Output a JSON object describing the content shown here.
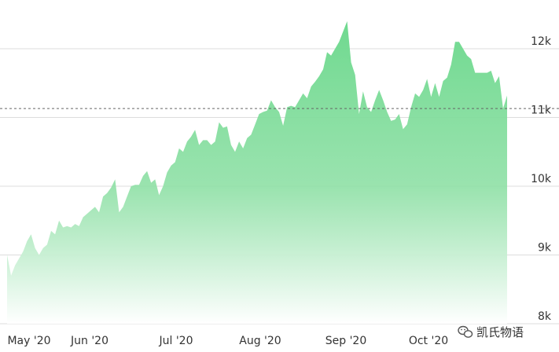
{
  "chart_data": {
    "type": "area",
    "title": "",
    "xlabel": "",
    "ylabel": "",
    "x_ticks": [
      "May '20",
      "Jun '20",
      "Jul '20",
      "Aug '20",
      "Sep '20",
      "Oct '20"
    ],
    "y_ticks": [
      "8k",
      "9k",
      "10k",
      "11k",
      "12k"
    ],
    "ylim": [
      8000,
      12450
    ],
    "grid": "horizontal",
    "reference_line": {
      "value": 11130,
      "style": "dashed"
    },
    "colors": {
      "area_top": "#6fd98f",
      "area_bottom": "#ffffff",
      "grid": "#dddddd",
      "reference": "#666666"
    },
    "series": [
      {
        "values": [
          9000,
          8700,
          8850,
          8950,
          9050,
          9200,
          9300,
          9100,
          9000,
          9100,
          9150,
          9350,
          9300,
          9500,
          9400,
          9420,
          9400,
          9450,
          9420,
          9550,
          9600,
          9650,
          9700,
          9620,
          9850,
          9900,
          9980,
          10100,
          9620,
          9700,
          9850,
          10000,
          10020,
          10020,
          10150,
          10220,
          10050,
          10100,
          9870,
          10000,
          10200,
          10300,
          10350,
          10550,
          10500,
          10650,
          10720,
          10820,
          10600,
          10670,
          10670,
          10600,
          10650,
          10930,
          10850,
          10870,
          10600,
          10500,
          10650,
          10550,
          10700,
          10750,
          10900,
          11050,
          11080,
          11100,
          11250,
          11150,
          11080,
          10880,
          11150,
          11170,
          11150,
          11250,
          11350,
          11280,
          11450,
          11520,
          11600,
          11700,
          11950,
          11900,
          12000,
          12100,
          12250,
          12400,
          11800,
          11620,
          11050,
          11380,
          11150,
          11080,
          11250,
          11400,
          11250,
          11080,
          10950,
          10970,
          11050,
          10830,
          10900,
          11150,
          11350,
          11300,
          11400,
          11560,
          11300,
          11500,
          11300,
          11530,
          11580,
          11770,
          12100,
          12100,
          12000,
          11900,
          11850,
          11650,
          11650,
          11650,
          11650,
          11680,
          11500,
          11600,
          11130,
          11320
        ]
      }
    ]
  },
  "watermark": {
    "icon": "wechat-icon",
    "text": "凯氏物语"
  }
}
